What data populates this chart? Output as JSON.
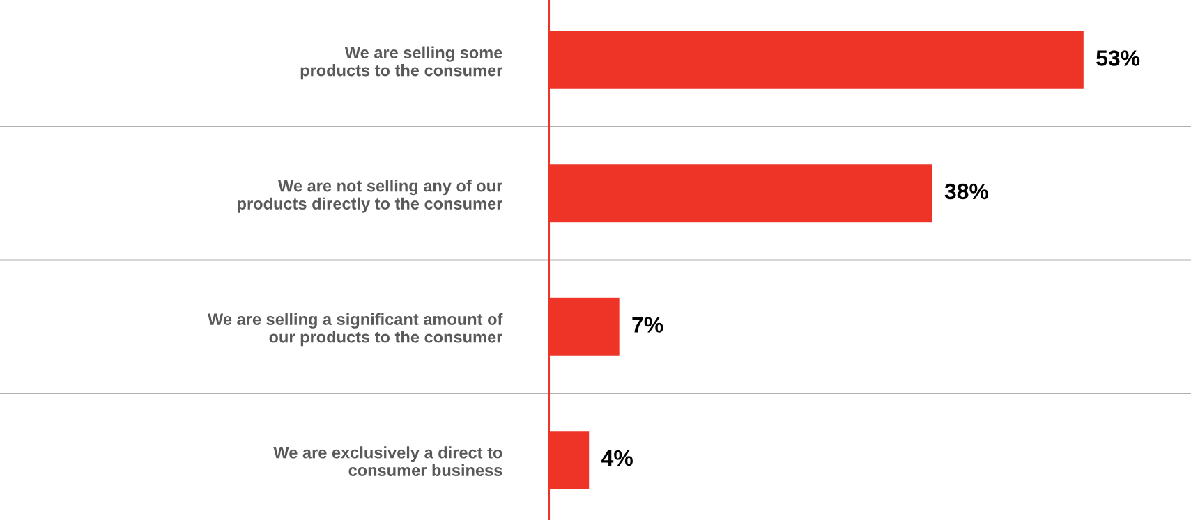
{
  "chart_data": {
    "type": "bar",
    "orientation": "horizontal",
    "categories": [
      "We are selling some\nproducts to the consumer",
      "We are not selling any of our\nproducts directly to the consumer",
      "We are selling a significant amount of\nour products to the consumer",
      "We are exclusively a direct to\nconsumer business"
    ],
    "values": [
      53,
      38,
      7,
      4
    ],
    "value_labels": [
      "53%",
      "38%",
      "7%",
      "4%"
    ],
    "color": "#ee3427",
    "xlim": [
      0,
      63.6
    ],
    "tick_labels": "y",
    "grid": "y",
    "legend": false
  }
}
